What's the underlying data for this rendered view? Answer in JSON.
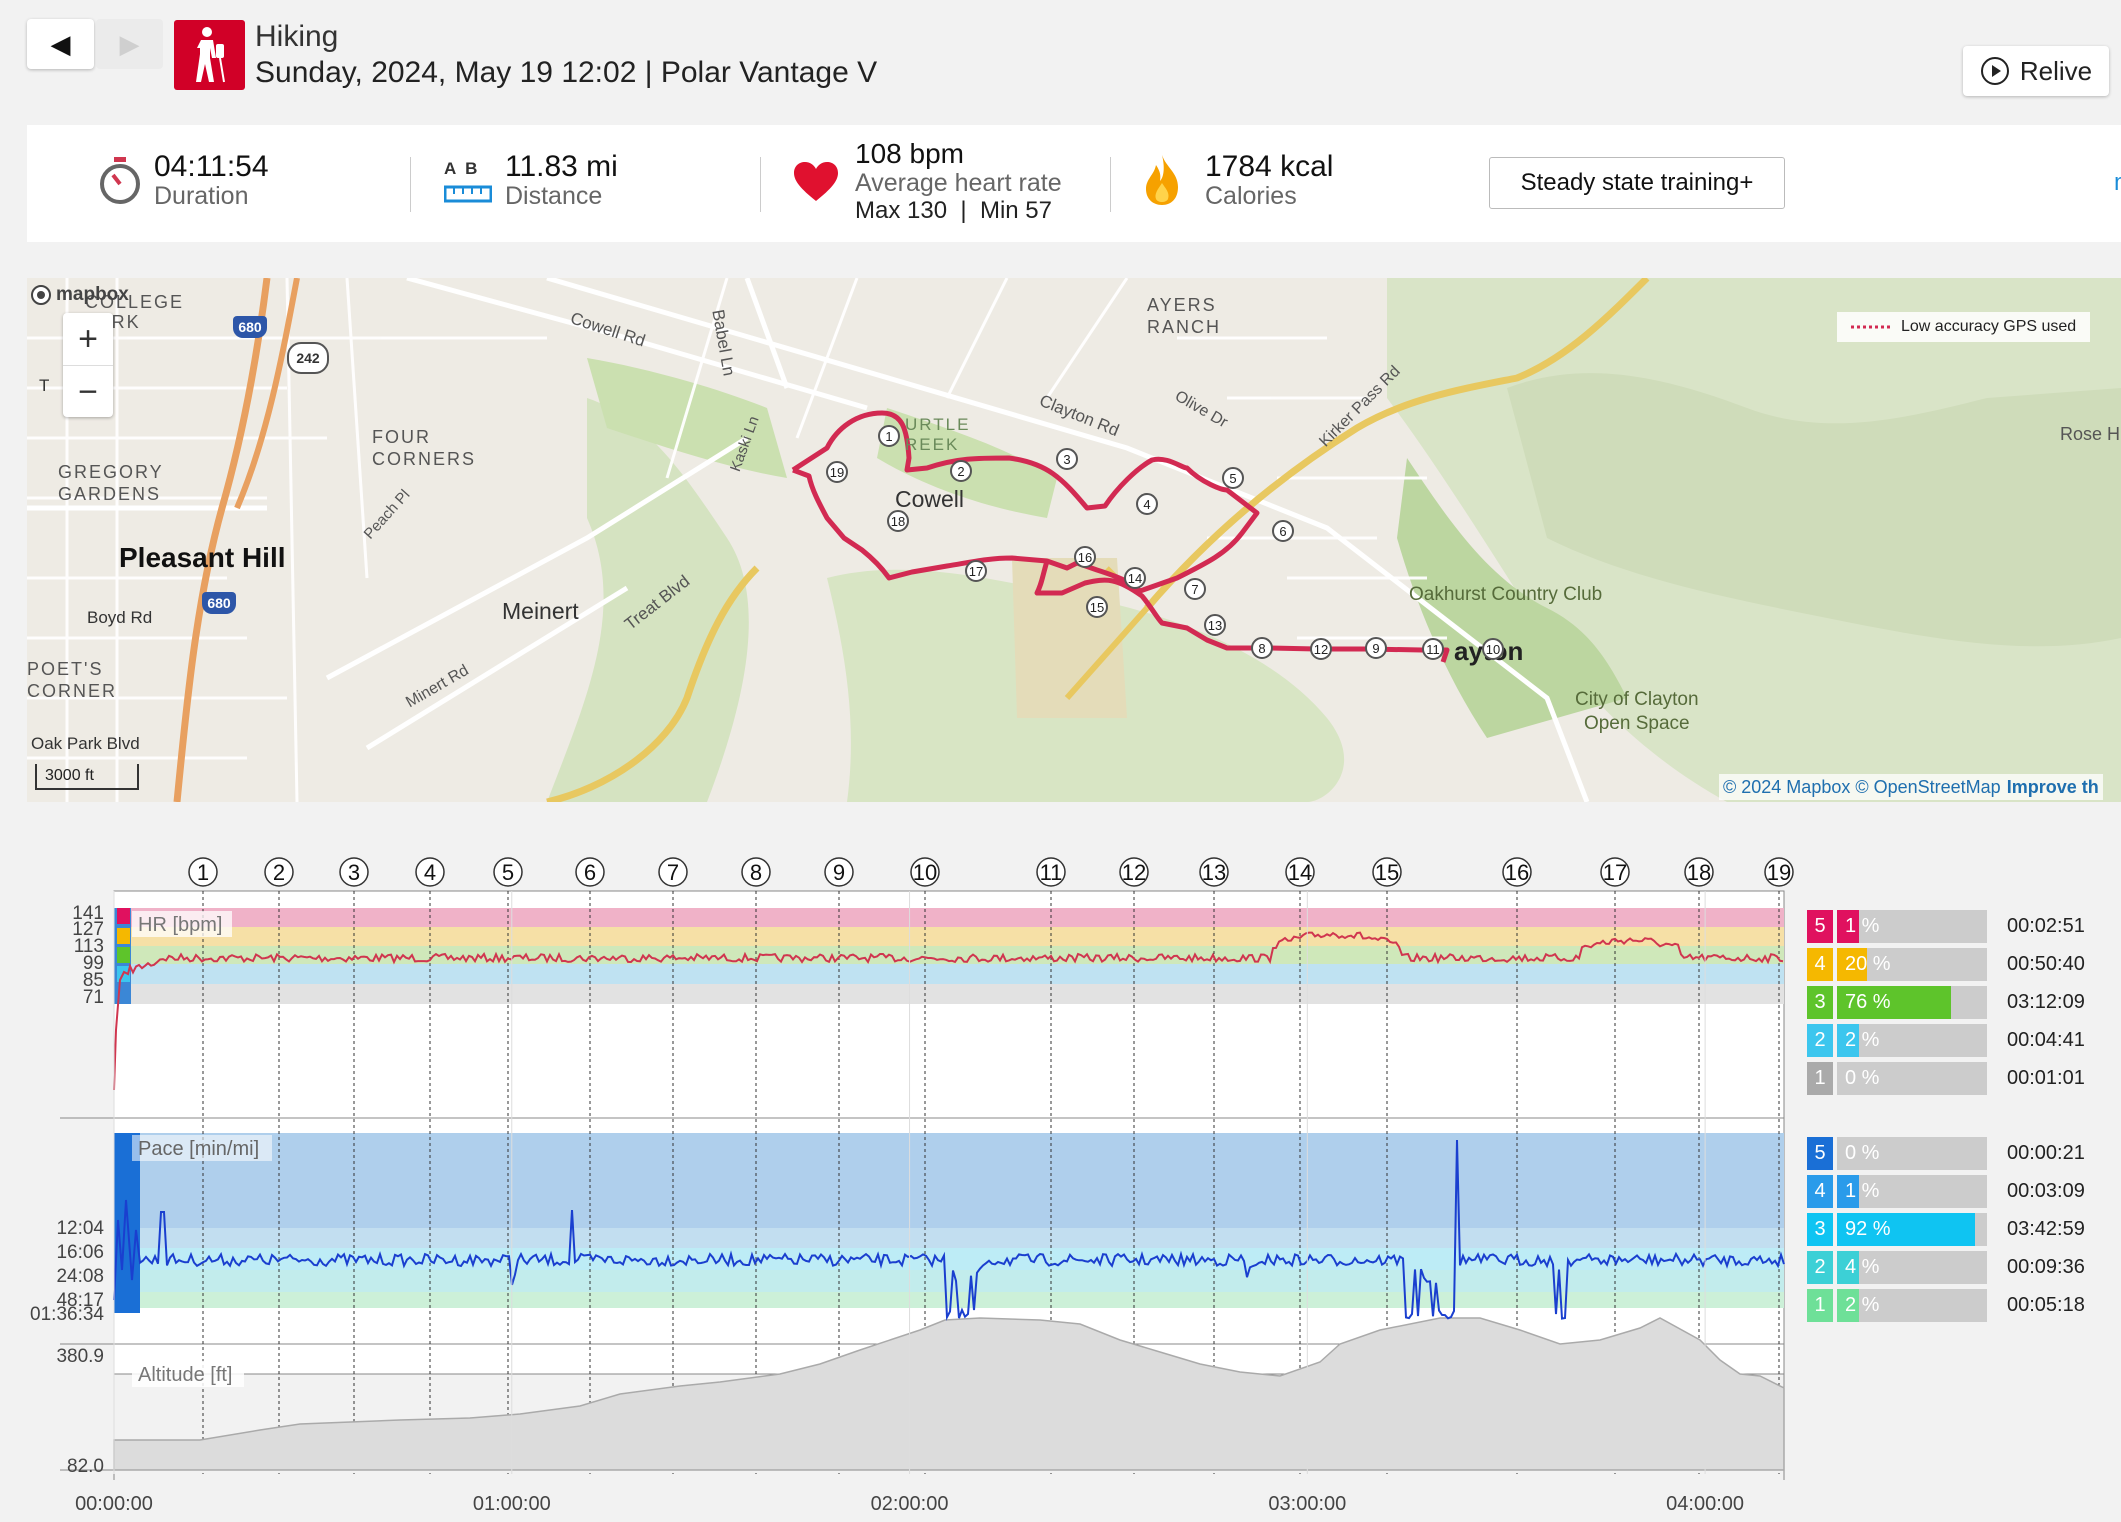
{
  "header": {
    "back_icon": "◀",
    "forward_icon": "▶",
    "sport": "Hiking",
    "subtitle": "Sunday, 2024, May 19 12:02 | Polar Vantage V",
    "relive_label": "Relive"
  },
  "summary": {
    "duration": {
      "value": "04:11:54",
      "label": "Duration"
    },
    "distance": {
      "ab": "A  B",
      "value": "11.83 mi",
      "label": "Distance"
    },
    "heart": {
      "value": "108 bpm",
      "label": "Average heart rate",
      "minmax": "Max 130  |  Min 57"
    },
    "calories": {
      "value": "1784 kcal",
      "label": "Calories"
    },
    "training_label": "Steady state training+",
    "more_link": "mo"
  },
  "map": {
    "mapbox_logo": "mapbox",
    "zoom_in": "+",
    "zoom_out": "−",
    "legend": "Low accuracy GPS used",
    "scale": "3000 ft",
    "attribution": "© 2024 Mapbox © OpenStreetMap",
    "improve": "Improve th",
    "labels": {
      "college_park": "COLLEGE\nPARK",
      "gregory_gardens": "GREGORY\nGARDENS",
      "four_corners": "FOUR\nCORNERS",
      "pleasant_hill": "Pleasant Hill",
      "meinert": "Meinert",
      "cowell": "Cowell",
      "ayers_ranch": "AYERS\nRANCH",
      "oakhurst": "Oakhurst Country Club",
      "clayton": "ayton",
      "city_open_space": "City of Clayton\nOpen Space",
      "rose": "Rose H",
      "turtle_creek": "URTLE\nREEK",
      "poets_corner": "POET'S\nCORNER",
      "roads": {
        "cowell_rd": "Cowell Rd",
        "babel_ln": "Babel Ln",
        "clayton_rd": "Clayton Rd",
        "olive_dr": "Olive Dr",
        "kirker_pass": "Kirker Pass Rd",
        "kaski_ln": "Kaski Ln",
        "peach_pl": "Peach Pl",
        "treat_blvd": "Treat Blvd",
        "minert_rd": "Minert Rd",
        "boyd_rd": "Boyd Rd",
        "oak_park": "Oak Park Blvd",
        "t_blvd": "T    Blvd",
        "i680": "680",
        "i680b": "680",
        "r242": "242"
      }
    },
    "laps": [
      "1",
      "2",
      "3",
      "4",
      "5",
      "6",
      "7",
      "8",
      "9",
      "10",
      "11",
      "12",
      "13",
      "14",
      "15",
      "16",
      "17",
      "18",
      "19"
    ]
  },
  "chart": {
    "lap_markers": [
      "1",
      "2",
      "3",
      "4",
      "5",
      "6",
      "7",
      "8",
      "9",
      "10",
      "11",
      "12",
      "13",
      "14",
      "15",
      "16",
      "17",
      "18",
      "19"
    ],
    "hr_label": "HR [bpm]",
    "hr_ticks": [
      "141",
      "127",
      "113",
      "99",
      "85",
      "71"
    ],
    "pace_label": "Pace [min/mi]",
    "pace_ticks": [
      "12:04",
      "16:06",
      "24:08",
      "48:17",
      "01:36:34"
    ],
    "alt_label": "Altitude [ft]",
    "alt_ticks": [
      "380.9",
      "82.0"
    ],
    "time_ticks": [
      "00:00:00",
      "01:00:00",
      "02:00:00",
      "03:00:00",
      "04:00:00"
    ],
    "colors": {
      "hr_line": "#d0364f",
      "pace_line": "#1a3fcf",
      "alt_fill": "#dcdcdc"
    },
    "hr_zones": [
      {
        "zone": "5",
        "pct": "1 %",
        "fraction": 0.01,
        "time": "00:02:51",
        "color": "#e0115f"
      },
      {
        "zone": "4",
        "pct": "20 %",
        "fraction": 0.2,
        "time": "00:50:40",
        "color": "#f5b800"
      },
      {
        "zone": "3",
        "pct": "76 %",
        "fraction": 0.76,
        "time": "03:12:09",
        "color": "#5ec42b"
      },
      {
        "zone": "2",
        "pct": "2 %",
        "fraction": 0.02,
        "time": "00:04:41",
        "color": "#3cc6ee"
      },
      {
        "zone": "1",
        "pct": "0 %",
        "fraction": 0.0,
        "time": "00:01:01",
        "color": "#aaaaaa"
      }
    ],
    "pace_zones": [
      {
        "zone": "5",
        "pct": "0 %",
        "fraction": 0.0,
        "time": "00:00:21",
        "color": "#1a6fd6"
      },
      {
        "zone": "4",
        "pct": "1 %",
        "fraction": 0.01,
        "time": "00:03:09",
        "color": "#2a9bea"
      },
      {
        "zone": "3",
        "pct": "92 %",
        "fraction": 0.92,
        "time": "03:42:59",
        "color": "#0fc4f2"
      },
      {
        "zone": "2",
        "pct": "4 %",
        "fraction": 0.04,
        "time": "00:09:36",
        "color": "#3cd0d6"
      },
      {
        "zone": "1",
        "pct": "2 %",
        "fraction": 0.02,
        "time": "00:05:18",
        "color": "#6ee098"
      }
    ]
  }
}
